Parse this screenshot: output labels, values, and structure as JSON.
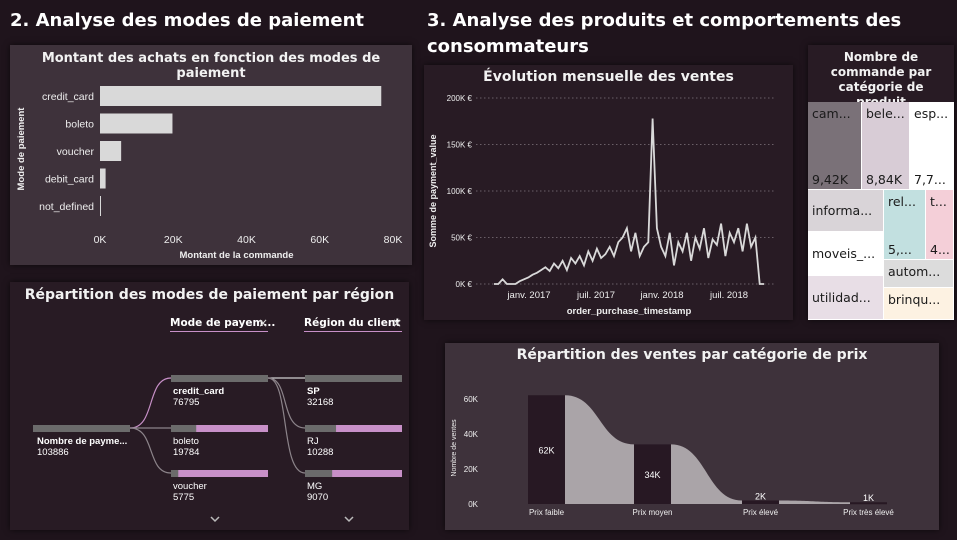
{
  "section2": {
    "title": "2. Analyse des modes de paiement"
  },
  "section3": {
    "title_line1": "3. Analyse des produits et comportements des",
    "title_line2": "consommateurs"
  },
  "payment_chart": {
    "title": "Montant des achats en fonction des modes de paiement",
    "ylabel": "Mode de paiement",
    "xlabel": "Montant de la commande",
    "chart_data": {
      "type": "bar",
      "orientation": "horizontal",
      "categories": [
        "credit_card",
        "boleto",
        "voucher",
        "debit_card",
        "not_defined"
      ],
      "values": [
        76795,
        19784,
        5775,
        1529,
        3
      ],
      "xlim": [
        0,
        80000
      ],
      "xticks": [
        "0K",
        "20K",
        "40K",
        "60K",
        "80K"
      ],
      "bar_color": "#d9d9d9"
    }
  },
  "decomp_tree": {
    "title": "Répartition des modes de paiement par région",
    "filter1": "Mode de payem...",
    "filter2": "Région du client",
    "close_glyph": "×",
    "root": {
      "label": "Nombre de payme...",
      "value": "103886"
    },
    "level1": [
      {
        "label": "credit_card",
        "value": "76795",
        "fraction": 1.0
      },
      {
        "label": "boleto",
        "value": "19784",
        "fraction": 0.26
      },
      {
        "label": "voucher",
        "value": "5775",
        "fraction": 0.075
      }
    ],
    "level2": [
      {
        "label": "SP",
        "value": "32168",
        "fraction": 1.0
      },
      {
        "label": "RJ",
        "value": "10288",
        "fraction": 0.32
      },
      {
        "label": "MG",
        "value": "9070",
        "fraction": 0.28
      }
    ],
    "accent": "#c890c8"
  },
  "monthly_chart": {
    "title": "Évolution mensuelle des ventes",
    "ylabel": "Somme de payment_value",
    "xlabel": "order_purchase_timestamp",
    "chart_data": {
      "type": "line",
      "yticks": [
        "0K €",
        "50K €",
        "100K €",
        "150K €",
        "200K €"
      ],
      "ylim": [
        0,
        200000
      ],
      "xticks": [
        "janv. 2017",
        "juil. 2017",
        "janv. 2018",
        "juil. 2018"
      ],
      "x_range": [
        "2016-09",
        "2018-10"
      ],
      "series_color": "#d9d9d9",
      "approx_values_k": [
        0,
        0,
        5,
        0,
        0,
        0,
        3,
        5,
        7,
        10,
        12,
        15,
        18,
        14,
        22,
        17,
        25,
        15,
        28,
        22,
        30,
        20,
        35,
        25,
        38,
        28,
        32,
        40,
        30,
        45,
        50,
        60,
        35,
        55,
        30,
        40,
        45,
        178,
        60,
        40,
        30,
        55,
        20,
        45,
        35,
        55,
        25,
        50,
        38,
        60,
        28,
        48,
        42,
        65,
        30,
        55,
        45,
        60,
        35,
        65,
        40,
        50,
        0,
        0
      ]
    }
  },
  "treemap": {
    "title": "Nombre de commande par catégorie de produit",
    "cells": [
      {
        "label": "cam...",
        "value": "9,42K",
        "color": "#7a7178"
      },
      {
        "label": "bele...",
        "value": "8,84K",
        "color": "#d8ccd6"
      },
      {
        "label": "esp...",
        "value": "7,7...",
        "color": "#ffffff"
      },
      {
        "label": "informa...",
        "value": "",
        "color": "#d9d4d8"
      },
      {
        "label": "rel...",
        "value": "5,...",
        "color": "#c2e0e0"
      },
      {
        "label": "t...",
        "value": "4...",
        "color": "#f4cfd8"
      },
      {
        "label": "moveis_...",
        "value": "",
        "color": "#ffffff"
      },
      {
        "label": "autom...",
        "value": "",
        "color": "#dcdcdc"
      },
      {
        "label": "utilidad...",
        "value": "",
        "color": "#e8dee6"
      },
      {
        "label": "brinqu...",
        "value": "",
        "color": "#fdf2e2"
      }
    ]
  },
  "price_chart": {
    "title": "Répartition des ventes par catégorie de prix",
    "ylabel": "Nombre de ventes",
    "chart_data": {
      "type": "bar",
      "categories": [
        "Prix faible",
        "Prix moyen",
        "Prix élevé",
        "Prix très élevé"
      ],
      "values": [
        62000,
        34000,
        2000,
        1000
      ],
      "data_labels": [
        "62K",
        "34K",
        "2K",
        "1K"
      ],
      "yticks": [
        "0K",
        "20K",
        "40K",
        "60K"
      ],
      "ylim": [
        0,
        65000
      ],
      "bar_color": "#271823",
      "ribbon_color": "#aaa4a8"
    }
  }
}
